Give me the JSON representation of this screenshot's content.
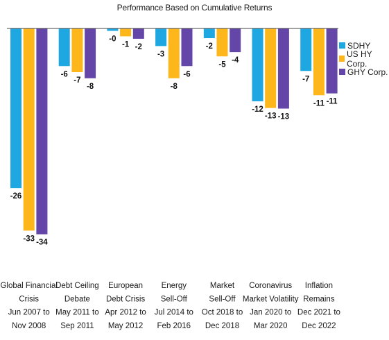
{
  "chart_data": {
    "type": "bar",
    "title": "Performance Based on Cumulative Returns",
    "xlabel": "",
    "ylabel": "",
    "ylim": [
      -35,
      0
    ],
    "grid": false,
    "legend_position": "top-right",
    "categories": [
      [
        "Global Financial",
        "Crisis",
        "Jun 2007 to",
        "Nov 2008"
      ],
      [
        "Debt Ceiling",
        "Debate",
        "May 2011 to",
        "Sep 2011"
      ],
      [
        "European",
        "Debt Crisis",
        "Apr 2012 to",
        "May 2012"
      ],
      [
        "Energy",
        "Sell-Off",
        "Jul 2014 to",
        "Feb 2016"
      ],
      [
        "Market",
        "Sell-Off",
        "Oct 2018 to",
        "Dec 2018"
      ],
      [
        "Coronavirus",
        "Market Volatility",
        "Jan 2020 to",
        "Mar 2020"
      ],
      [
        "Inflation",
        "Remains",
        "Dec 2021 to",
        "Dec 2022"
      ]
    ],
    "series": [
      {
        "name": "SDHY",
        "color": "#1ea7e0",
        "values": [
          -26.3,
          -6.2,
          -0.4,
          -2.9,
          -1.6,
          -12.0,
          -7.0
        ],
        "labels": [
          "-26",
          "-6",
          "-0",
          "-3",
          "-2",
          "-12",
          "-7"
        ]
      },
      {
        "name": "US HY Corp.",
        "color": "#fdb71a",
        "values": [
          -33.3,
          -7.2,
          -1.3,
          -8.2,
          -4.6,
          -13.1,
          -11.0
        ],
        "labels": [
          "-33",
          "-7",
          "-1",
          "-8",
          "-5",
          "-13",
          "-11"
        ]
      },
      {
        "name": "GHY Corp.",
        "color": "#6346a8",
        "values": [
          -33.9,
          -8.2,
          -1.7,
          -6.2,
          -3.9,
          -13.2,
          -10.7
        ],
        "labels": [
          "-34",
          "-8",
          "-2",
          "-6",
          "-4",
          "-13",
          "-11"
        ]
      }
    ]
  }
}
